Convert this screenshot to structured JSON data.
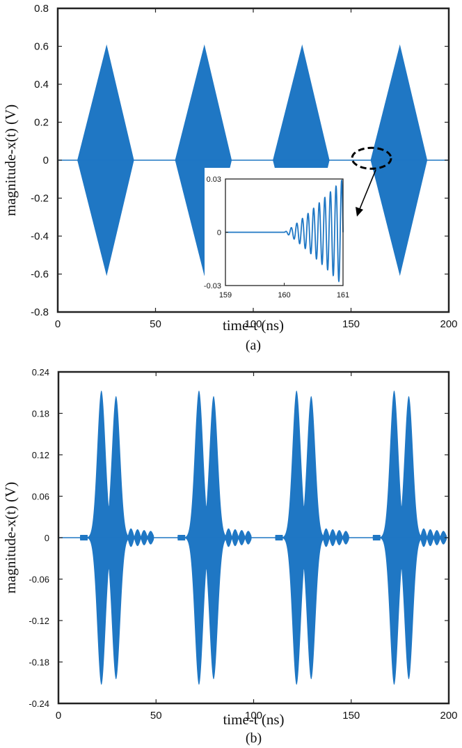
{
  "chart_data": [
    {
      "panel": "(a)",
      "type": "line",
      "xlabel": "time-t (ns)",
      "ylabel": "magnitude-x(t) (V)",
      "xlim": [
        0,
        200
      ],
      "ylim": [
        -0.8,
        0.8
      ],
      "x_ticks": [
        "0",
        "50",
        "100",
        "150",
        "200"
      ],
      "y_ticks": [
        "-0.8",
        "-0.6",
        "-0.4",
        "-0.2",
        "0",
        "0.2",
        "0.4",
        "0.6",
        "0.8"
      ],
      "color": "#1f77c4",
      "grid": false,
      "envelope_peaks": [
        {
          "start": 10,
          "peak": 25,
          "end": 39,
          "amplitude": 0.61
        },
        {
          "start": 60,
          "peak": 75,
          "end": 89,
          "amplitude": 0.61
        },
        {
          "start": 110,
          "peak": 125,
          "end": 139,
          "amplitude": 0.61
        },
        {
          "start": 160,
          "peak": 175,
          "end": 189,
          "amplitude": 0.61
        }
      ],
      "inset": {
        "xlim": [
          159,
          161
        ],
        "ylim": [
          -0.03,
          0.03
        ],
        "x_ticks": [
          "159",
          "160",
          "161"
        ],
        "y_ticks": [
          "0.03",
          "0",
          "-0.03"
        ],
        "signal_start": 160,
        "signal_end": 161,
        "final_amplitude": 0.03
      }
    },
    {
      "panel": "(b)",
      "type": "line",
      "xlabel": "time-t (ns)",
      "ylabel": "magnitude-x(t) (V)",
      "xlim": [
        0,
        200
      ],
      "ylim": [
        -0.24,
        0.24
      ],
      "x_ticks": [
        "0",
        "50",
        "100",
        "150",
        "200"
      ],
      "y_ticks": [
        "0.24",
        "0.18",
        "0.12",
        "0.06",
        "0",
        "-0.06",
        "-0.12",
        "-0.18",
        "-0.24"
      ],
      "color": "#1f77c4",
      "grid": false,
      "bursts": [
        {
          "lobe1_center": 22,
          "lobe1_amp": 0.213,
          "lobe2_center": 29.5,
          "lobe2_amp": 0.205,
          "tail_end": 49
        },
        {
          "lobe1_center": 72,
          "lobe1_amp": 0.213,
          "lobe2_center": 79.5,
          "lobe2_amp": 0.205,
          "tail_end": 99
        },
        {
          "lobe1_center": 122,
          "lobe1_amp": 0.213,
          "lobe2_center": 129.5,
          "lobe2_amp": 0.205,
          "tail_end": 149
        },
        {
          "lobe1_center": 172,
          "lobe1_amp": 0.213,
          "lobe2_center": 179.5,
          "lobe2_amp": 0.205,
          "tail_end": 199
        }
      ]
    }
  ]
}
